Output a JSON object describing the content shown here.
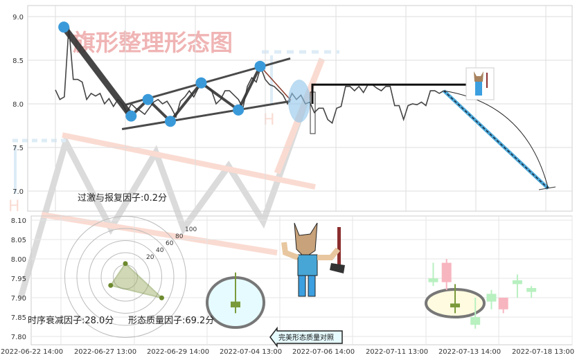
{
  "watermark_title": "旗形整理形态图",
  "colors": {
    "pivot": "#3a9ad9",
    "line": "#444444",
    "candle_up": "#7a9a3a",
    "watermark": "#f4c6c6"
  },
  "chart_data": [
    {
      "type": "line",
      "title": "",
      "yticks": [
        "9.0",
        "8.5",
        "8.0",
        "7.5",
        "7.0"
      ],
      "ylim": [
        6.8,
        9.1
      ],
      "grid": true,
      "x_range_ticks": [
        0,
        5.54
      ],
      "values": [
        8.16,
        8.05,
        8.08,
        8.88,
        8.28,
        8.28,
        8.25,
        8.05,
        8.12,
        8.09,
        8.12,
        8.0,
        8.06,
        7.97,
        8.05,
        8.0,
        7.9,
        8.0,
        7.95,
        7.92,
        7.88,
        7.95,
        8.02,
        8.05,
        8.0,
        8.03,
        7.95,
        7.85,
        8.03,
        8.08,
        8.15,
        8.08,
        8.18,
        8.22,
        8.2,
        8.15,
        8.0,
        8.05,
        8.15,
        8.15,
        8.1,
        8.05,
        7.95,
        8.2,
        8.3,
        8.25,
        8.42,
        8.28,
        8.22,
        8.2,
        8.15,
        8.1,
        8.0,
        8.12,
        8.05,
        8.1,
        8.0,
        8.02,
        7.9,
        7.95,
        7.95,
        7.82,
        7.78,
        7.95,
        7.97,
        8.2,
        8.2,
        8.15,
        8.2,
        8.13,
        8.22,
        8.22,
        8.18,
        8.15,
        8.2,
        8.2,
        7.98,
        7.98,
        7.82,
        7.98,
        8.0,
        7.99,
        8.02,
        7.98,
        8.15,
        8.15,
        8.12,
        8.15
      ],
      "pivots": [
        {
          "x": 0.12,
          "y": 8.88
        },
        {
          "x": 1.08,
          "y": 7.86
        },
        {
          "x": 1.32,
          "y": 8.05
        },
        {
          "x": 1.64,
          "y": 7.8
        },
        {
          "x": 2.08,
          "y": 8.24
        },
        {
          "x": 2.61,
          "y": 7.93
        },
        {
          "x": 2.92,
          "y": 8.43
        }
      ],
      "upper_trend": [
        {
          "x": 1.0,
          "y": 7.99
        },
        {
          "x": 3.35,
          "y": 8.52
        }
      ],
      "lower_trend": [
        {
          "x": 0.95,
          "y": 7.71
        },
        {
          "x": 3.35,
          "y": 8.03
        }
      ],
      "resistance": {
        "x": [
          3.66,
          5.86
        ],
        "y": 8.22
      },
      "projection": [
        {
          "x": 5.54,
          "y": 8.15
        },
        {
          "x": 7.03,
          "y": 7.03
        }
      ]
    },
    {
      "type": "candlestick",
      "yticks": [
        "8.10",
        "8.05",
        "8.00",
        "7.95",
        "7.90",
        "7.85",
        "7.80"
      ],
      "ylim": [
        7.78,
        8.11
      ],
      "xticks": [
        "2022-06-22 14:00",
        "2022-06-27 13:00",
        "2022-06-29 14:00",
        "2022-07-04 13:00",
        "2022-07-06 14:00",
        "2022-07-11 13:00",
        "2022-07-13 14:00",
        "2022-07-18 13:00"
      ],
      "candles": [
        {
          "x": 2.76,
          "open": 7.875,
          "close": 7.89,
          "high": 7.965,
          "low": 7.86,
          "dir": "up",
          "highlight": true
        },
        {
          "x": 5.39,
          "open": 7.94,
          "close": 7.95,
          "high": 7.99,
          "low": 7.93,
          "dir": "up"
        },
        {
          "x": 5.58,
          "open": 7.99,
          "close": 7.94,
          "high": 8.0,
          "low": 7.92,
          "dir": "down"
        },
        {
          "x": 5.78,
          "open": 7.875,
          "close": 7.885,
          "high": 7.935,
          "low": 7.86,
          "dir": "up",
          "highlight": true
        },
        {
          "x": 5.99,
          "open": 7.83,
          "close": 7.85,
          "high": 7.9,
          "low": 7.82,
          "dir": "up"
        },
        {
          "x": 6.22,
          "open": 7.89,
          "close": 7.91,
          "high": 7.92,
          "low": 7.87,
          "dir": "up"
        },
        {
          "x": 6.39,
          "open": 7.9,
          "close": 7.87,
          "high": 7.9,
          "low": 7.86,
          "dir": "down"
        },
        {
          "x": 6.59,
          "open": 7.935,
          "close": 7.945,
          "high": 7.96,
          "low": 7.9,
          "dir": "up"
        },
        {
          "x": 6.79,
          "open": 7.915,
          "close": 7.925,
          "high": 7.93,
          "low": 7.9,
          "dir": "up"
        }
      ]
    },
    {
      "type": "radar",
      "rings": [
        "20",
        "40",
        "60",
        "80",
        "100"
      ],
      "factors": [
        {
          "label": "过激与报复因子",
          "value": 0.2,
          "text": "过激与报复因子:0.2分"
        },
        {
          "label": "时序衰减因子",
          "value": 28.0,
          "text": "时序衰减因子:28.0分"
        },
        {
          "label": "形态质量因子",
          "value": 69.2,
          "text": "形态质量因子:69.2分"
        }
      ]
    }
  ],
  "compare_label": "完美形态质量对照"
}
